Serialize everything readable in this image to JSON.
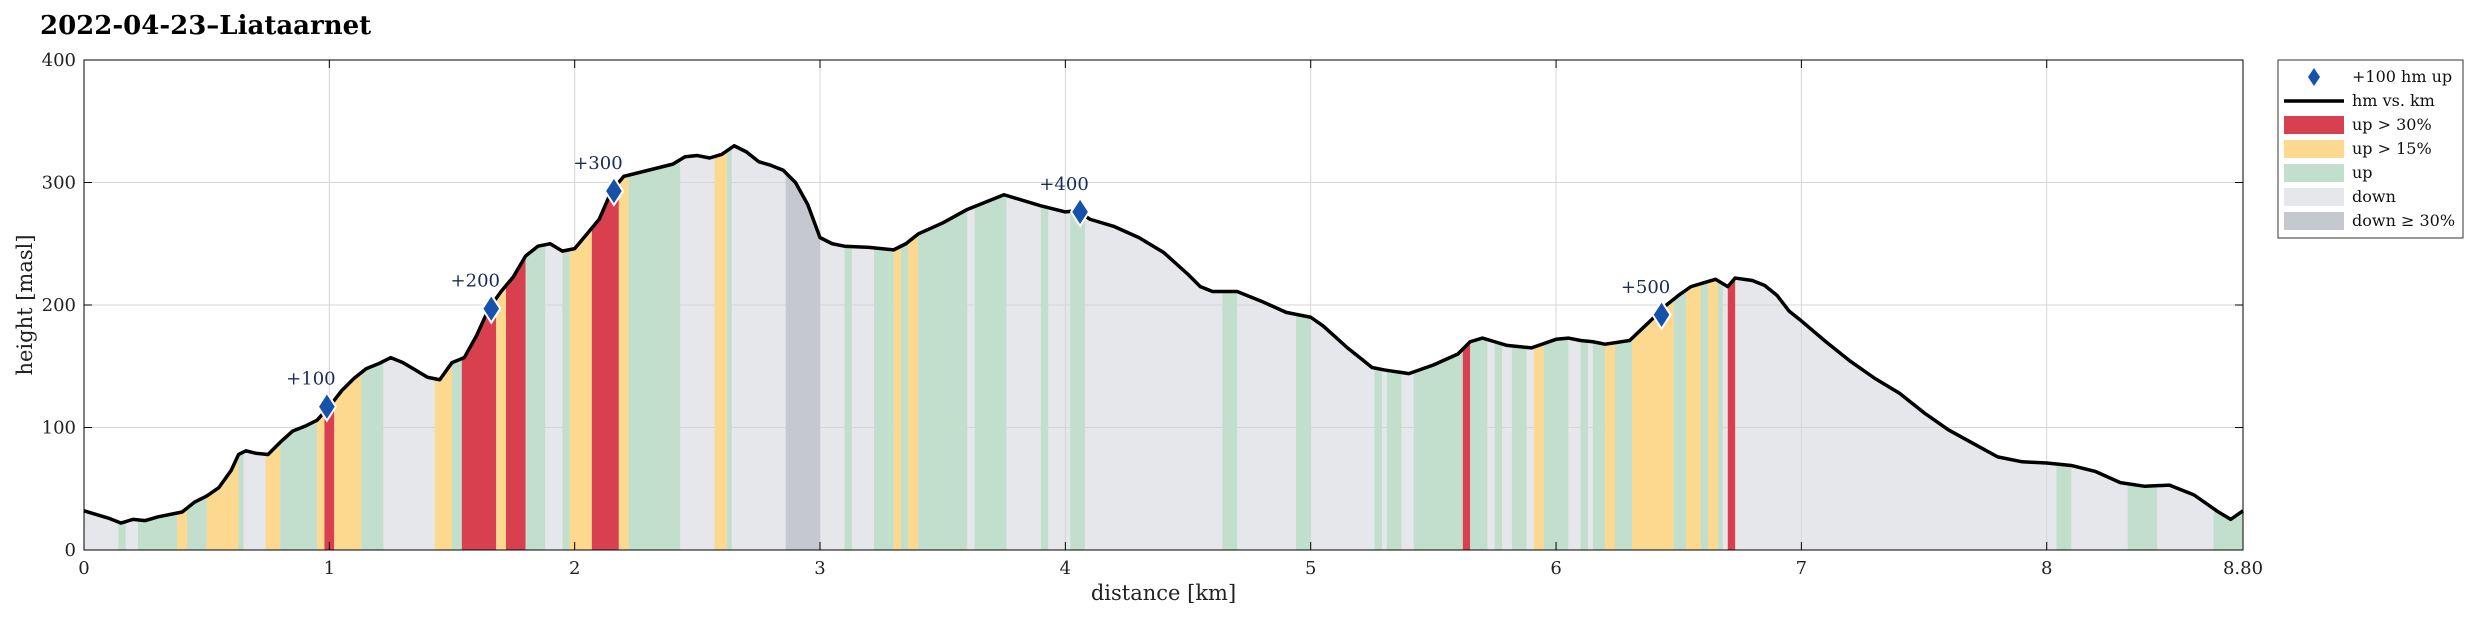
{
  "chart_data": {
    "type": "area",
    "title": "2022-04-23–Liataarnet",
    "xlabel": "distance [km]",
    "ylabel": "height [masl]",
    "xlim": [
      0,
      8.8
    ],
    "ylim": [
      0,
      400
    ],
    "xticks": [
      0,
      1,
      2,
      3,
      4,
      5,
      6,
      7,
      8,
      8.8
    ],
    "xtick_labels": [
      "0",
      "1",
      "2",
      "3",
      "4",
      "5",
      "6",
      "7",
      "8",
      "8.80"
    ],
    "yticks": [
      0,
      100,
      200,
      300,
      400
    ],
    "grid": true,
    "legend_placement": "outside-right-top",
    "colors": {
      "up30": "#d9404f",
      "up15": "#fcd98f",
      "up": "#c2dfcd",
      "down": "#e5e7ea",
      "down30": "#c5c8cf",
      "line": "#000000",
      "marker": "#1652a9"
    },
    "legend": [
      {
        "label": "+100 hm up",
        "kind": "marker"
      },
      {
        "label": "hm vs. km",
        "kind": "line"
      },
      {
        "label": "up > 30%",
        "kind": "up30"
      },
      {
        "label": "up > 15%",
        "kind": "up15"
      },
      {
        "label": "up",
        "kind": "up"
      },
      {
        "label": "down",
        "kind": "down"
      },
      {
        "label": "down ≥ 30%",
        "kind": "down30"
      }
    ],
    "profile": [
      [
        0,
        32
      ],
      [
        0.1,
        26
      ],
      [
        0.15,
        22
      ],
      [
        0.2,
        25
      ],
      [
        0.25,
        24
      ],
      [
        0.3,
        27
      ],
      [
        0.4,
        31
      ],
      [
        0.45,
        39
      ],
      [
        0.5,
        44
      ],
      [
        0.55,
        51
      ],
      [
        0.6,
        65
      ],
      [
        0.63,
        78
      ],
      [
        0.66,
        81
      ],
      [
        0.7,
        79
      ],
      [
        0.75,
        78
      ],
      [
        0.8,
        88
      ],
      [
        0.85,
        97
      ],
      [
        0.9,
        101
      ],
      [
        0.95,
        106
      ],
      [
        1.0,
        117
      ],
      [
        1.05,
        130
      ],
      [
        1.1,
        140
      ],
      [
        1.15,
        148
      ],
      [
        1.2,
        152
      ],
      [
        1.25,
        157
      ],
      [
        1.3,
        153
      ],
      [
        1.35,
        147
      ],
      [
        1.4,
        141
      ],
      [
        1.45,
        139
      ],
      [
        1.5,
        153
      ],
      [
        1.55,
        157
      ],
      [
        1.6,
        175
      ],
      [
        1.65,
        197
      ],
      [
        1.7,
        211
      ],
      [
        1.75,
        223
      ],
      [
        1.8,
        240
      ],
      [
        1.85,
        248
      ],
      [
        1.9,
        250
      ],
      [
        1.95,
        244
      ],
      [
        2.0,
        246
      ],
      [
        2.05,
        258
      ],
      [
        2.1,
        270
      ],
      [
        2.15,
        293
      ],
      [
        2.2,
        305
      ],
      [
        2.3,
        310
      ],
      [
        2.4,
        315
      ],
      [
        2.45,
        321
      ],
      [
        2.5,
        322
      ],
      [
        2.55,
        320
      ],
      [
        2.6,
        323
      ],
      [
        2.65,
        330
      ],
      [
        2.7,
        325
      ],
      [
        2.75,
        317
      ],
      [
        2.8,
        314
      ],
      [
        2.85,
        310
      ],
      [
        2.9,
        300
      ],
      [
        2.95,
        282
      ],
      [
        3.0,
        255
      ],
      [
        3.05,
        250
      ],
      [
        3.1,
        248
      ],
      [
        3.2,
        247
      ],
      [
        3.3,
        245
      ],
      [
        3.35,
        250
      ],
      [
        3.4,
        258
      ],
      [
        3.5,
        267
      ],
      [
        3.6,
        278
      ],
      [
        3.7,
        286
      ],
      [
        3.75,
        290
      ],
      [
        3.8,
        287
      ],
      [
        3.9,
        281
      ],
      [
        4.0,
        276
      ],
      [
        4.05,
        277
      ],
      [
        4.1,
        270
      ],
      [
        4.2,
        264
      ],
      [
        4.3,
        255
      ],
      [
        4.4,
        243
      ],
      [
        4.5,
        225
      ],
      [
        4.55,
        215
      ],
      [
        4.6,
        211
      ],
      [
        4.7,
        211
      ],
      [
        4.8,
        203
      ],
      [
        4.9,
        194
      ],
      [
        5.0,
        190
      ],
      [
        5.05,
        183
      ],
      [
        5.1,
        174
      ],
      [
        5.15,
        165
      ],
      [
        5.2,
        157
      ],
      [
        5.25,
        149
      ],
      [
        5.3,
        147
      ],
      [
        5.4,
        144
      ],
      [
        5.5,
        151
      ],
      [
        5.6,
        160
      ],
      [
        5.65,
        170
      ],
      [
        5.7,
        173
      ],
      [
        5.75,
        170
      ],
      [
        5.8,
        167
      ],
      [
        5.9,
        165
      ],
      [
        6.0,
        172
      ],
      [
        6.05,
        173
      ],
      [
        6.1,
        171
      ],
      [
        6.15,
        170
      ],
      [
        6.2,
        168
      ],
      [
        6.3,
        171
      ],
      [
        6.4,
        190
      ],
      [
        6.45,
        200
      ],
      [
        6.5,
        208
      ],
      [
        6.55,
        215
      ],
      [
        6.6,
        218
      ],
      [
        6.65,
        221
      ],
      [
        6.7,
        215
      ],
      [
        6.73,
        222
      ],
      [
        6.8,
        220
      ],
      [
        6.85,
        216
      ],
      [
        6.9,
        208
      ],
      [
        6.95,
        195
      ],
      [
        7.0,
        187
      ],
      [
        7.1,
        170
      ],
      [
        7.2,
        154
      ],
      [
        7.3,
        140
      ],
      [
        7.4,
        128
      ],
      [
        7.5,
        112
      ],
      [
        7.6,
        98
      ],
      [
        7.7,
        87
      ],
      [
        7.8,
        76
      ],
      [
        7.9,
        72
      ],
      [
        8.0,
        71
      ],
      [
        8.1,
        69
      ],
      [
        8.2,
        64
      ],
      [
        8.3,
        55
      ],
      [
        8.4,
        52
      ],
      [
        8.5,
        53
      ],
      [
        8.6,
        45
      ],
      [
        8.7,
        31
      ],
      [
        8.75,
        25
      ],
      [
        8.8,
        32
      ]
    ],
    "bands": [
      {
        "x0": 0.14,
        "x1": 0.17,
        "kind": "up"
      },
      {
        "x0": 0.22,
        "x1": 0.38,
        "kind": "up"
      },
      {
        "x0": 0.38,
        "x1": 0.42,
        "kind": "up15"
      },
      {
        "x0": 0.42,
        "x1": 0.5,
        "kind": "up"
      },
      {
        "x0": 0.5,
        "x1": 0.63,
        "kind": "up15"
      },
      {
        "x0": 0.63,
        "x1": 0.65,
        "kind": "up"
      },
      {
        "x0": 0.74,
        "x1": 0.8,
        "kind": "up15"
      },
      {
        "x0": 0.8,
        "x1": 0.95,
        "kind": "up"
      },
      {
        "x0": 0.95,
        "x1": 0.98,
        "kind": "up15"
      },
      {
        "x0": 0.98,
        "x1": 1.02,
        "kind": "up30"
      },
      {
        "x0": 1.02,
        "x1": 1.13,
        "kind": "up15"
      },
      {
        "x0": 1.13,
        "x1": 1.22,
        "kind": "up"
      },
      {
        "x0": 1.43,
        "x1": 1.5,
        "kind": "up15"
      },
      {
        "x0": 1.5,
        "x1": 1.54,
        "kind": "up"
      },
      {
        "x0": 1.54,
        "x1": 1.68,
        "kind": "up30"
      },
      {
        "x0": 1.68,
        "x1": 1.72,
        "kind": "up15"
      },
      {
        "x0": 1.72,
        "x1": 1.8,
        "kind": "up30"
      },
      {
        "x0": 1.8,
        "x1": 1.88,
        "kind": "up"
      },
      {
        "x0": 1.95,
        "x1": 1.98,
        "kind": "up"
      },
      {
        "x0": 1.98,
        "x1": 2.07,
        "kind": "up15"
      },
      {
        "x0": 2.07,
        "x1": 2.18,
        "kind": "up30"
      },
      {
        "x0": 2.18,
        "x1": 2.22,
        "kind": "up15"
      },
      {
        "x0": 2.22,
        "x1": 2.43,
        "kind": "up"
      },
      {
        "x0": 2.57,
        "x1": 2.62,
        "kind": "up15"
      },
      {
        "x0": 2.62,
        "x1": 2.64,
        "kind": "up"
      },
      {
        "x0": 2.86,
        "x1": 3.0,
        "kind": "down30"
      },
      {
        "x0": 3.1,
        "x1": 3.13,
        "kind": "up"
      },
      {
        "x0": 3.22,
        "x1": 3.3,
        "kind": "up"
      },
      {
        "x0": 3.3,
        "x1": 3.33,
        "kind": "up15"
      },
      {
        "x0": 3.33,
        "x1": 3.36,
        "kind": "up"
      },
      {
        "x0": 3.36,
        "x1": 3.4,
        "kind": "up15"
      },
      {
        "x0": 3.4,
        "x1": 3.6,
        "kind": "up"
      },
      {
        "x0": 3.63,
        "x1": 3.76,
        "kind": "up"
      },
      {
        "x0": 3.9,
        "x1": 3.93,
        "kind": "up"
      },
      {
        "x0": 4.02,
        "x1": 4.08,
        "kind": "up"
      },
      {
        "x0": 4.64,
        "x1": 4.7,
        "kind": "up"
      },
      {
        "x0": 4.94,
        "x1": 5.0,
        "kind": "up"
      },
      {
        "x0": 5.26,
        "x1": 5.29,
        "kind": "up"
      },
      {
        "x0": 5.31,
        "x1": 5.37,
        "kind": "up"
      },
      {
        "x0": 5.42,
        "x1": 5.62,
        "kind": "up"
      },
      {
        "x0": 5.62,
        "x1": 5.65,
        "kind": "up30"
      },
      {
        "x0": 5.65,
        "x1": 5.72,
        "kind": "up"
      },
      {
        "x0": 5.75,
        "x1": 5.78,
        "kind": "up"
      },
      {
        "x0": 5.82,
        "x1": 5.88,
        "kind": "up"
      },
      {
        "x0": 5.91,
        "x1": 5.95,
        "kind": "up15"
      },
      {
        "x0": 5.95,
        "x1": 6.05,
        "kind": "up"
      },
      {
        "x0": 6.1,
        "x1": 6.13,
        "kind": "up"
      },
      {
        "x0": 6.15,
        "x1": 6.2,
        "kind": "up"
      },
      {
        "x0": 6.2,
        "x1": 6.24,
        "kind": "up15"
      },
      {
        "x0": 6.24,
        "x1": 6.31,
        "kind": "up"
      },
      {
        "x0": 6.31,
        "x1": 6.36,
        "kind": "up15"
      },
      {
        "x0": 6.36,
        "x1": 6.48,
        "kind": "up15"
      },
      {
        "x0": 6.48,
        "x1": 6.53,
        "kind": "up"
      },
      {
        "x0": 6.53,
        "x1": 6.59,
        "kind": "up15"
      },
      {
        "x0": 6.59,
        "x1": 6.62,
        "kind": "up"
      },
      {
        "x0": 6.62,
        "x1": 6.66,
        "kind": "up15"
      },
      {
        "x0": 6.66,
        "x1": 6.68,
        "kind": "up"
      },
      {
        "x0": 6.7,
        "x1": 6.73,
        "kind": "up30"
      },
      {
        "x0": 8.04,
        "x1": 8.1,
        "kind": "up"
      },
      {
        "x0": 8.33,
        "x1": 8.45,
        "kind": "up"
      },
      {
        "x0": 8.68,
        "x1": 8.8,
        "kind": "up"
      }
    ],
    "markers": [
      {
        "label": "+100",
        "x": 0.99,
        "y": 117
      },
      {
        "label": "+200",
        "x": 1.66,
        "y": 197
      },
      {
        "label": "+300",
        "x": 2.16,
        "y": 293
      },
      {
        "label": "+400",
        "x": 4.06,
        "y": 276
      },
      {
        "label": "+500",
        "x": 6.43,
        "y": 192
      }
    ]
  }
}
